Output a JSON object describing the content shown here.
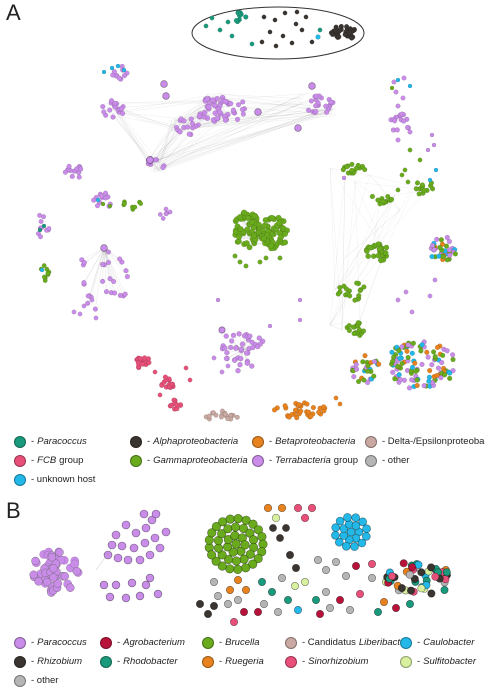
{
  "panels": {
    "a_label": "A",
    "b_label": "B"
  },
  "colors": {
    "teal": "#1a9a7c",
    "black": "#3a3530",
    "orange": "#e8821e",
    "rose": "#c9a9a2",
    "pink": "#e8507a",
    "green": "#6aab1e",
    "violet": "#c98ce8",
    "grey": "#b5b5b5",
    "cyan": "#22b8e8",
    "crimson": "#b8123a",
    "lightgreen": "#d8f0a0",
    "magenta": "#e8507a"
  },
  "legend_a": [
    {
      "color": "#1a9a7c",
      "prefix": "-",
      "italic": "Paracoccus",
      "rest": ""
    },
    {
      "color": "#3a3530",
      "prefix": "-",
      "italic": "Alphaproteobacteria",
      "rest": ""
    },
    {
      "color": "#e8821e",
      "prefix": "-",
      "italic": "Betaproteobacteria",
      "rest": ""
    },
    {
      "color": "#c9a9a2",
      "prefix": "- Delta-/Epsilonproteobacteria",
      "italic": "",
      "rest": ""
    },
    {
      "color": "#e8507a",
      "prefix": "-",
      "italic": "FCB",
      "rest": "group"
    },
    {
      "color": "#6aab1e",
      "prefix": "-",
      "italic": "Gammaproteobacteria",
      "rest": ""
    },
    {
      "color": "#c98ce8",
      "prefix": "-",
      "italic": "Terrabacteria",
      "rest": "group"
    },
    {
      "color": "#b5b5b5",
      "prefix": "- other",
      "italic": "",
      "rest": ""
    },
    {
      "color": "#22b8e8",
      "prefix": "- unknown host",
      "italic": "",
      "rest": ""
    }
  ],
  "legend_b": [
    {
      "color": "#c98ce8",
      "prefix": "-",
      "italic": "Paracoccus",
      "rest": ""
    },
    {
      "color": "#b8123a",
      "prefix": "-",
      "italic": "Agrobacterium",
      "rest": ""
    },
    {
      "color": "#6aab1e",
      "prefix": "-",
      "italic": "Brucella",
      "rest": ""
    },
    {
      "color": "#c9a9a2",
      "prefix": "- Candidatus",
      "italic": "Liberibacter",
      "rest": ""
    },
    {
      "color": "#22b8e8",
      "prefix": "-",
      "italic": "Caulobacter",
      "rest": ""
    },
    {
      "color": "#3a3530",
      "prefix": "-",
      "italic": "Rhizobium",
      "rest": ""
    },
    {
      "color": "#1a9a7c",
      "prefix": "-",
      "italic": "Rhodobacter",
      "rest": ""
    },
    {
      "color": "#e8821e",
      "prefix": "-",
      "italic": "Ruegeria",
      "rest": ""
    },
    {
      "color": "#e8507a",
      "prefix": "-",
      "italic": "Sinorhizobium",
      "rest": ""
    },
    {
      "color": "#d8f0a0",
      "prefix": "-",
      "italic": "Sulfitobacter",
      "rest": ""
    },
    {
      "color": "#b5b5b5",
      "prefix": "- other",
      "italic": "",
      "rest": ""
    }
  ]
}
